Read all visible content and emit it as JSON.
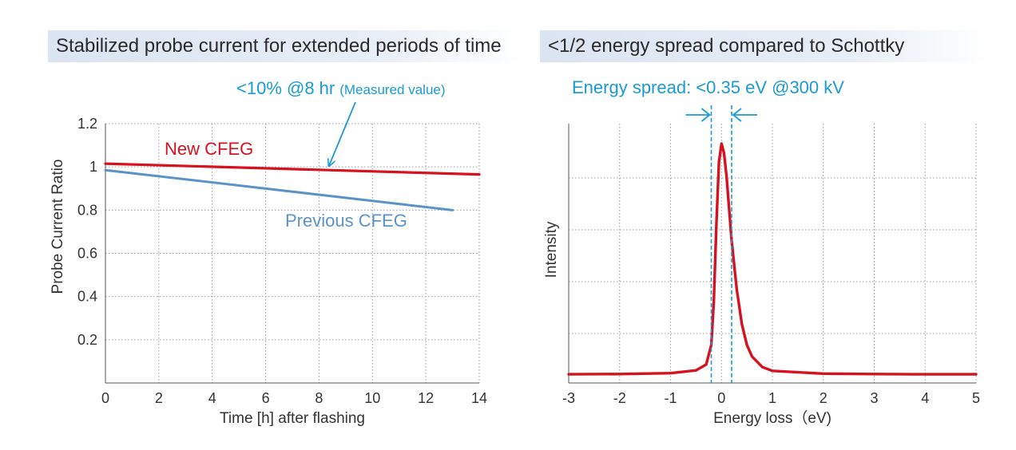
{
  "colors": {
    "new_cfeg": "#d6121f",
    "previous_cfeg": "#5b93c9",
    "annotation": "#1a9ad6",
    "header_bg": "#dbe4f1",
    "spectrum": "#d6121f"
  },
  "chart_data": [
    {
      "type": "line",
      "title": "Stabilized probe current for extended periods of time",
      "xlabel": "Time [h] after flashing",
      "ylabel": "Probe Current Ratio",
      "xlim": [
        0,
        14
      ],
      "ylim": [
        0,
        1.2
      ],
      "xticks": [
        "0",
        "2",
        "4",
        "6",
        "8",
        "10",
        "12",
        "14"
      ],
      "yticks": [
        "0.2",
        "0.4",
        "0.6",
        "0.8",
        "1",
        "1.2"
      ],
      "grid": true,
      "series": [
        {
          "name": "New CFEG",
          "x": [
            0,
            14
          ],
          "y": [
            1.015,
            0.965
          ]
        },
        {
          "name": "Previous CFEG",
          "x": [
            0,
            13
          ],
          "y": [
            0.985,
            0.8
          ]
        }
      ],
      "annotation": {
        "main": "<10% @8 hr",
        "note": "(Measured value)",
        "points_to": {
          "x": 8.5,
          "y": 0.985
        }
      }
    },
    {
      "type": "line",
      "title": "<1/2 energy spread compared to Schottky",
      "xlabel": "Energy loss（eV)",
      "ylabel": "Intensity",
      "xlim": [
        -3,
        5
      ],
      "xticks": [
        "-3",
        "-2",
        "-1",
        "0",
        "1",
        "2",
        "3",
        "4",
        "5"
      ],
      "grid": true,
      "series": [
        {
          "x": [
            -3,
            -2,
            -1,
            -0.5,
            -0.3,
            -0.2,
            -0.15,
            -0.1,
            -0.05,
            0,
            0.05,
            0.1,
            0.15,
            0.2,
            0.3,
            0.4,
            0.5,
            0.6,
            0.8,
            1,
            2,
            3,
            4,
            5
          ],
          "y": [
            0.003,
            0.004,
            0.008,
            0.02,
            0.045,
            0.13,
            0.32,
            0.65,
            0.92,
            1.0,
            0.96,
            0.86,
            0.72,
            0.58,
            0.37,
            0.22,
            0.13,
            0.08,
            0.035,
            0.018,
            0.006,
            0.004,
            0.003,
            0.003
          ]
        }
      ],
      "annotation": {
        "text": "Energy spread: <0.35 eV @300 kV",
        "bounds": [
          -0.2,
          0.2
        ]
      }
    }
  ]
}
